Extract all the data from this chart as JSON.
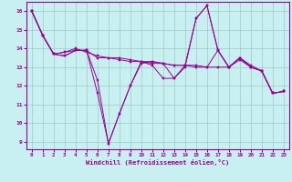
{
  "title": "",
  "xlabel": "Windchill (Refroidissement éolien,°C)",
  "ylabel": "",
  "background_color": "#c8f0f0",
  "line_color": "#990099",
  "grid_color": "#a0c8c8",
  "xlim": [
    -0.5,
    23.5
  ],
  "ylim": [
    8.6,
    16.5
  ],
  "yticks": [
    9,
    10,
    11,
    12,
    13,
    14,
    15,
    16
  ],
  "xticks": [
    0,
    1,
    2,
    3,
    4,
    5,
    6,
    7,
    8,
    9,
    10,
    11,
    12,
    13,
    14,
    15,
    16,
    17,
    18,
    19,
    20,
    21,
    22,
    23
  ],
  "series": [
    [
      16.0,
      14.7,
      13.7,
      13.6,
      13.9,
      13.9,
      12.3,
      8.9,
      10.5,
      12.0,
      13.2,
      13.3,
      13.2,
      12.4,
      13.0,
      15.6,
      16.3,
      13.9,
      13.0,
      13.5,
      13.0,
      12.8,
      11.6,
      11.7
    ],
    [
      16.0,
      14.7,
      13.7,
      13.6,
      13.9,
      13.9,
      11.6,
      8.9,
      10.5,
      12.0,
      13.3,
      13.1,
      12.4,
      12.4,
      13.1,
      15.6,
      16.3,
      13.9,
      13.0,
      13.5,
      13.0,
      12.8,
      11.6,
      11.7
    ],
    [
      16.0,
      14.7,
      13.7,
      13.8,
      13.9,
      13.9,
      13.5,
      13.5,
      13.5,
      13.4,
      13.3,
      13.3,
      13.2,
      13.1,
      13.1,
      13.1,
      13.0,
      13.0,
      13.0,
      13.5,
      13.1,
      12.8,
      11.6,
      11.7
    ],
    [
      16.0,
      14.7,
      13.7,
      13.8,
      14.0,
      13.8,
      13.6,
      13.5,
      13.4,
      13.3,
      13.3,
      13.2,
      13.2,
      13.1,
      13.1,
      13.0,
      13.0,
      13.9,
      13.0,
      13.4,
      13.0,
      12.8,
      11.6,
      11.7
    ]
  ]
}
